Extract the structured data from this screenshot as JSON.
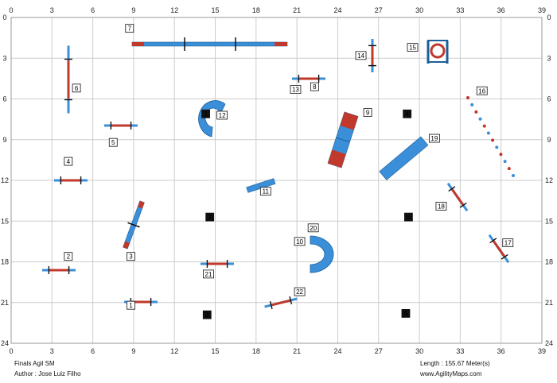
{
  "course": {
    "title": "Finals Agil SM",
    "author": "Author : Jose Luiz Filho",
    "length": "Length : 155.67 Meter(s)",
    "website": "www.AgilityMaps.com"
  },
  "axes": {
    "x_ticks": [
      0,
      3,
      6,
      9,
      12,
      15,
      18,
      21,
      24,
      27,
      30,
      33,
      36,
      39
    ],
    "y_ticks": [
      0,
      3,
      6,
      9,
      12,
      15,
      18,
      21,
      24
    ],
    "xlim": [
      0,
      39
    ],
    "ylim": [
      0,
      24
    ]
  },
  "colors": {
    "blue": "#3b8fd9",
    "red": "#c0392b",
    "grid": "#cccccc",
    "dark": "#111111"
  },
  "markers": [
    {
      "n": "1",
      "x": 8.8,
      "y": 21.2,
      "style": "white"
    },
    {
      "n": "2",
      "x": 4.2,
      "y": 17.6,
      "style": "white"
    },
    {
      "n": "3",
      "x": 8.8,
      "y": 17.6,
      "style": "white"
    },
    {
      "n": "4",
      "x": 4.2,
      "y": 10.6,
      "style": "white"
    },
    {
      "n": "5",
      "x": 7.5,
      "y": 9.2,
      "style": "white"
    },
    {
      "n": "6",
      "x": 4.8,
      "y": 5.2,
      "style": "white"
    },
    {
      "n": "7",
      "x": 8.7,
      "y": 0.8,
      "style": "white"
    },
    {
      "n": "8",
      "x": 22.3,
      "y": 5.1,
      "style": "white"
    },
    {
      "n": "9",
      "x": 26.2,
      "y": 7.0,
      "style": "white"
    },
    {
      "n": "10",
      "x": 21.2,
      "y": 16.5,
      "style": "white"
    },
    {
      "n": "11",
      "x": 18.7,
      "y": 12.8,
      "style": "white"
    },
    {
      "n": "12",
      "x": 15.5,
      "y": 7.2,
      "style": "white"
    },
    {
      "n": "13",
      "x": 20.9,
      "y": 5.3,
      "style": "white"
    },
    {
      "n": "14",
      "x": 25.7,
      "y": 2.8,
      "style": "white"
    },
    {
      "n": "15",
      "x": 29.5,
      "y": 2.2,
      "style": "white"
    },
    {
      "n": "16",
      "x": 34.6,
      "y": 5.4,
      "style": "white"
    },
    {
      "n": "17",
      "x": 36.5,
      "y": 16.6,
      "style": "white"
    },
    {
      "n": "18",
      "x": 31.6,
      "y": 13.9,
      "style": "white"
    },
    {
      "n": "19",
      "x": 31.1,
      "y": 8.9,
      "style": "white"
    },
    {
      "n": "20",
      "x": 22.2,
      "y": 15.5,
      "style": "white"
    },
    {
      "n": "21",
      "x": 14.5,
      "y": 18.9,
      "style": "white"
    },
    {
      "n": "22",
      "x": 21.2,
      "y": 20.2,
      "style": "white"
    },
    {
      "n": "1",
      "x": 14.3,
      "y": 7.1,
      "style": "black"
    },
    {
      "n": "2",
      "x": 14.6,
      "y": 14.7,
      "style": "black"
    },
    {
      "n": "3",
      "x": 14.4,
      "y": 21.9,
      "style": "black"
    },
    {
      "n": "4",
      "x": 29.1,
      "y": 7.1,
      "style": "black"
    },
    {
      "n": "5",
      "x": 29.2,
      "y": 14.7,
      "style": "black"
    },
    {
      "n": "6",
      "x": 29.0,
      "y": 21.8,
      "style": "black"
    }
  ]
}
